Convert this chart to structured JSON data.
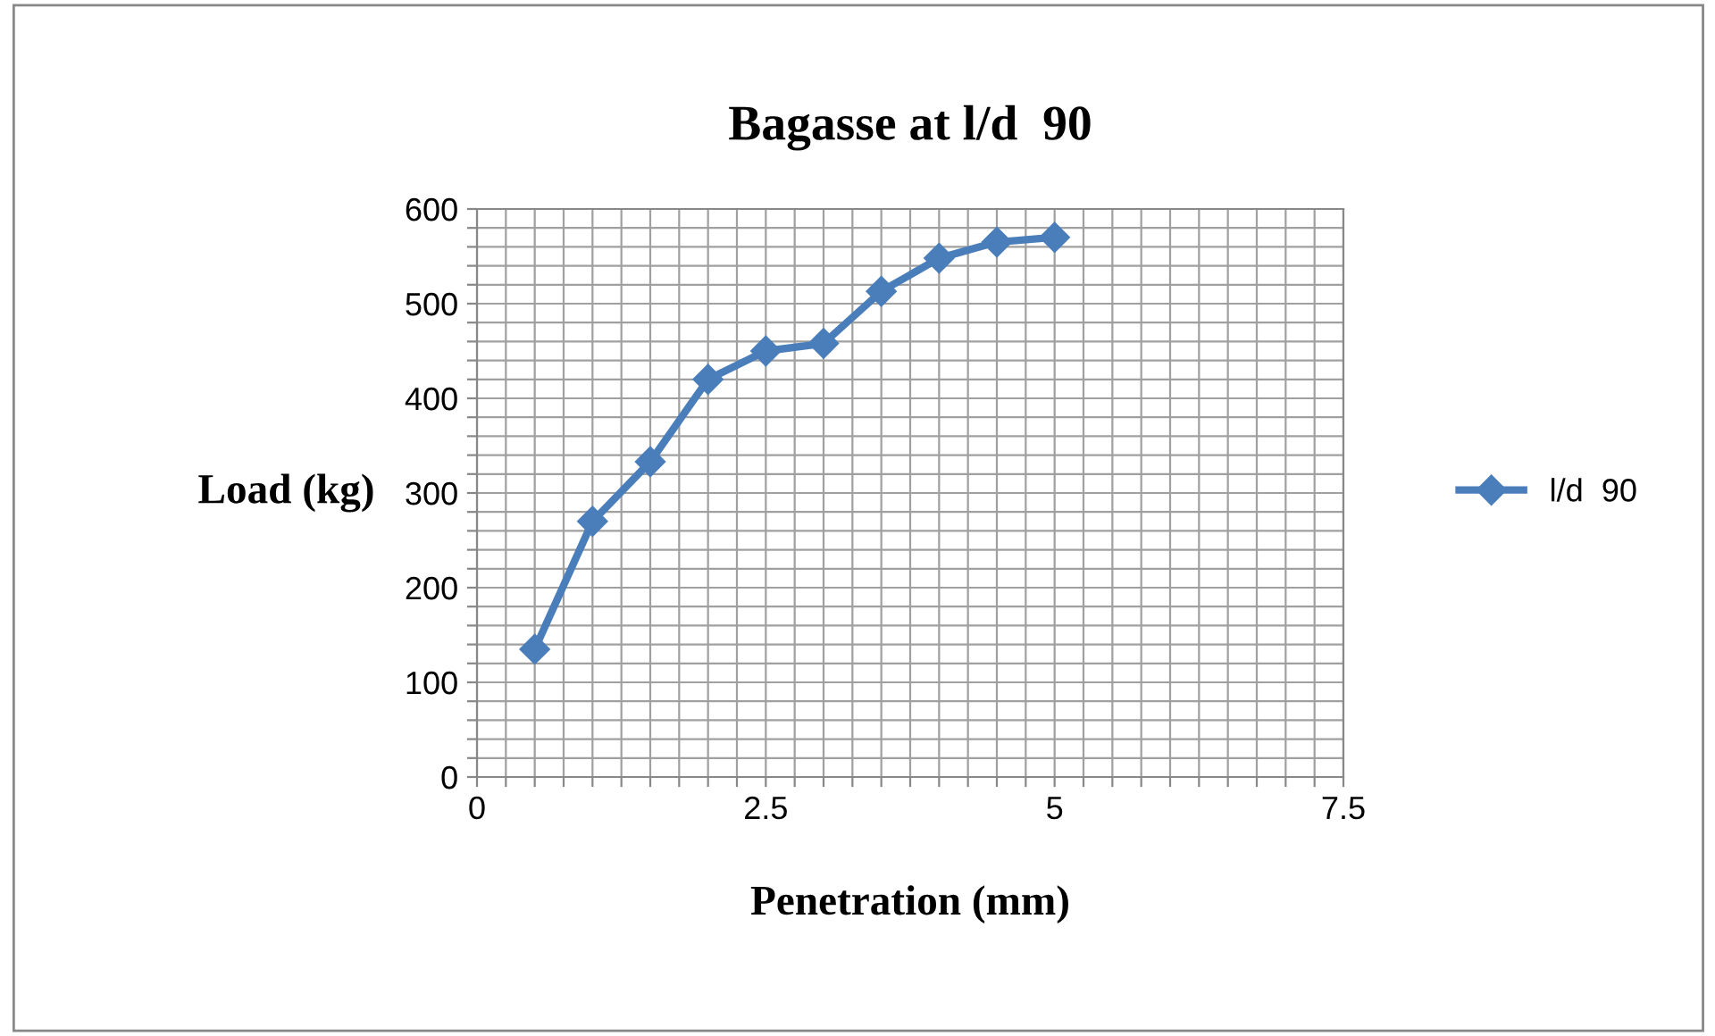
{
  "chart_data": {
    "type": "line",
    "title": "Bagasse at l/d  90",
    "xlabel": "Penetration (mm)",
    "ylabel": "Load (kg)",
    "x": [
      0.5,
      1,
      1.5,
      2,
      2.5,
      3,
      3.5,
      4,
      4.5,
      5
    ],
    "series": [
      {
        "name": "l/d  90",
        "color": "#4a7ebb",
        "values": [
          135,
          270,
          333,
          420,
          450,
          458,
          513,
          548,
          565,
          570
        ]
      }
    ],
    "xlim": [
      0,
      7.5
    ],
    "xticks": [
      0,
      {
        "value": 0.25,
        "label": null
      },
      {
        "value": 0.5,
        "label": null
      },
      {
        "value": 0.75,
        "label": null
      },
      {
        "value": 1,
        "label": null
      },
      {
        "value": 1.25,
        "label": null
      },
      {
        "value": 1.5,
        "label": null
      },
      {
        "value": 1.75,
        "label": null
      },
      {
        "value": 2,
        "label": null
      },
      {
        "value": 2.25,
        "label": null
      },
      2.5,
      {
        "value": 2.75,
        "label": null
      },
      {
        "value": 3,
        "label": null
      },
      {
        "value": 3.25,
        "label": null
      },
      {
        "value": 3.5,
        "label": null
      },
      {
        "value": 3.75,
        "label": null
      },
      {
        "value": 4,
        "label": null
      },
      {
        "value": 4.25,
        "label": null
      },
      {
        "value": 4.5,
        "label": null
      },
      {
        "value": 4.75,
        "label": null
      },
      5,
      {
        "value": 5.25,
        "label": null
      },
      {
        "value": 5.5,
        "label": null
      },
      {
        "value": 5.75,
        "label": null
      },
      {
        "value": 6,
        "label": null
      },
      {
        "value": 6.25,
        "label": null
      },
      {
        "value": 6.5,
        "label": null
      },
      {
        "value": 6.75,
        "label": null
      },
      {
        "value": 7,
        "label": null
      },
      {
        "value": 7.25,
        "label": null
      },
      7.5
    ],
    "ylim": [
      0,
      600
    ],
    "yticks": [
      0,
      {
        "value": 20,
        "label": null
      },
      {
        "value": 40,
        "label": null
      },
      {
        "value": 60,
        "label": null
      },
      {
        "value": 80,
        "label": null
      },
      100,
      {
        "value": 120,
        "label": null
      },
      {
        "value": 140,
        "label": null
      },
      {
        "value": 160,
        "label": null
      },
      {
        "value": 180,
        "label": null
      },
      200,
      {
        "value": 220,
        "label": null
      },
      {
        "value": 240,
        "label": null
      },
      {
        "value": 260,
        "label": null
      },
      {
        "value": 280,
        "label": null
      },
      300,
      {
        "value": 320,
        "label": null
      },
      {
        "value": 340,
        "label": null
      },
      {
        "value": 360,
        "label": null
      },
      {
        "value": 380,
        "label": null
      },
      400,
      {
        "value": 420,
        "label": null
      },
      {
        "value": 440,
        "label": null
      },
      {
        "value": 460,
        "label": null
      },
      {
        "value": 480,
        "label": null
      },
      500,
      {
        "value": 520,
        "label": null
      },
      {
        "value": 540,
        "label": null
      },
      {
        "value": 560,
        "label": null
      },
      {
        "value": 580,
        "label": null
      },
      600
    ],
    "grid": true,
    "legend": "right",
    "marker": "diamond",
    "line_style": "solid"
  }
}
